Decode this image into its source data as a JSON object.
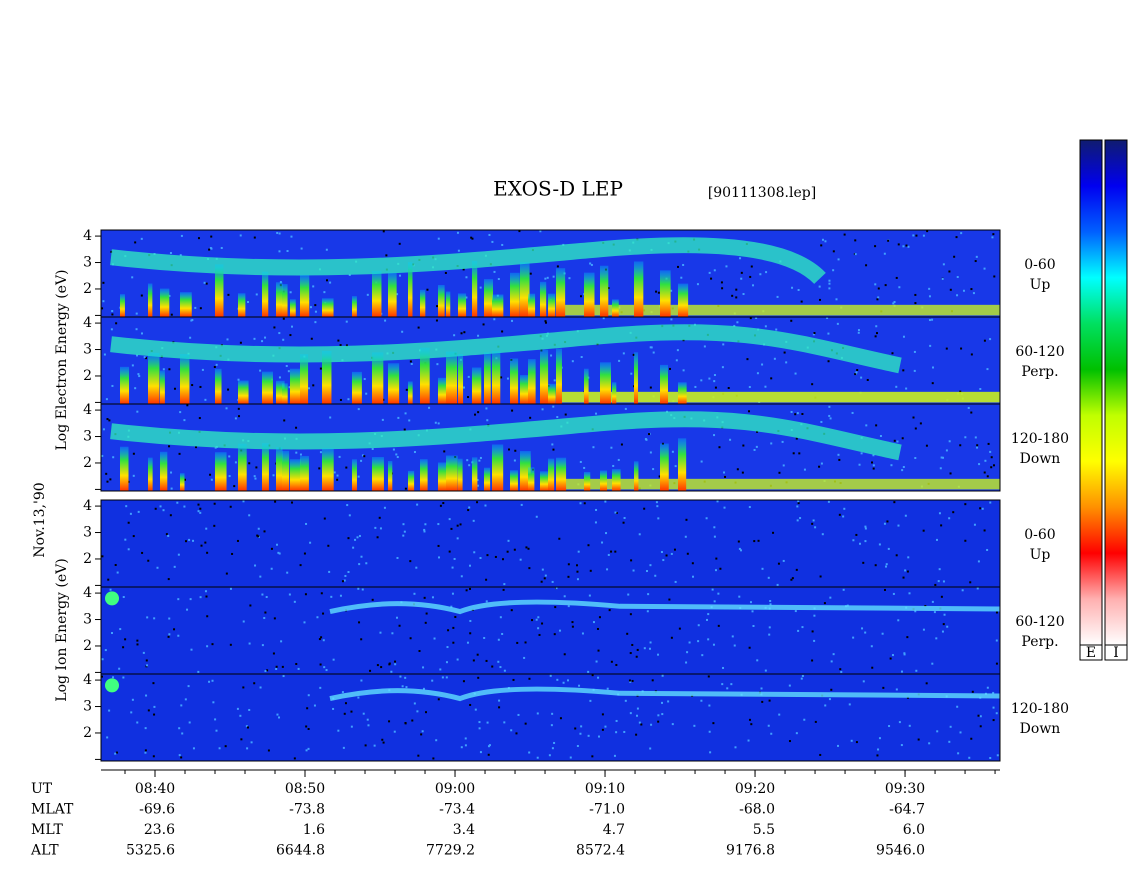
{
  "chart_data": {
    "type": "spectrogram",
    "title": "EXOS-D LEP",
    "subtitle": "[90111308.lep]",
    "date_label": "Nov.13,'90",
    "groups": [
      {
        "ylabel": "Log Electron Energy (eV)",
        "kind": "electron",
        "panels": [
          {
            "label": "0-60",
            "sublabel": "Up"
          },
          {
            "label": "60-120",
            "sublabel": "Perp."
          },
          {
            "label": "120-180",
            "sublabel": "Down"
          }
        ]
      },
      {
        "ylabel": "Log Ion Energy (eV)",
        "kind": "ion",
        "panels": [
          {
            "label": "0-60",
            "sublabel": "Up"
          },
          {
            "label": "60-120",
            "sublabel": "Perp."
          },
          {
            "label": "120-180",
            "sublabel": "Down"
          }
        ]
      }
    ],
    "ylim": [
      0.94,
      4.23
    ],
    "yticks": [
      2,
      3,
      4
    ],
    "yminorticks": [
      1
    ],
    "xlim": [
      516.4,
      576.33
    ],
    "xticks": [
      {
        "value": 520,
        "label": "08:40"
      },
      {
        "value": 530,
        "label": "08:50"
      },
      {
        "value": 540,
        "label": "09:00"
      },
      {
        "value": 550,
        "label": "09:10"
      },
      {
        "value": 560,
        "label": "09:20"
      },
      {
        "value": 570,
        "label": "09:30"
      }
    ],
    "xminor_step": 2,
    "ephemeris": [
      {
        "label": "UT"
      },
      {
        "label": "MLAT",
        "values": [
          -69.6,
          -73.8,
          -73.4,
          -71.0,
          -68.0,
          -64.7
        ],
        "value_labels": [
          "-69.6",
          "-73.8",
          "-73.4",
          "-71.0",
          "-68.0",
          "-64.7"
        ]
      },
      {
        "label": "MLT",
        "values": [
          23.6,
          1.6,
          3.4,
          4.7,
          5.5,
          6.0
        ],
        "value_labels": [
          "23.6",
          "1.6",
          "3.4",
          "4.7",
          "5.5",
          "6.0"
        ]
      },
      {
        "label": "ALT",
        "values": [
          5325.6,
          6644.8,
          7729.2,
          8572.4,
          9176.8,
          9546.0
        ],
        "value_labels": [
          "5325.6",
          "6644.8",
          "7729.2",
          "8572.4",
          "9176.8",
          "9546.0"
        ]
      }
    ],
    "colorbar": {
      "labels": [
        "E",
        "I"
      ],
      "colors": [
        "#101c70",
        "#0000f0",
        "#0060ff",
        "#00ffff",
        "#00e060",
        "#00c000",
        "#c0ff00",
        "#ffff00",
        "#ff9000",
        "#ff0000",
        "#ffb0b0",
        "#ffffff"
      ]
    }
  }
}
